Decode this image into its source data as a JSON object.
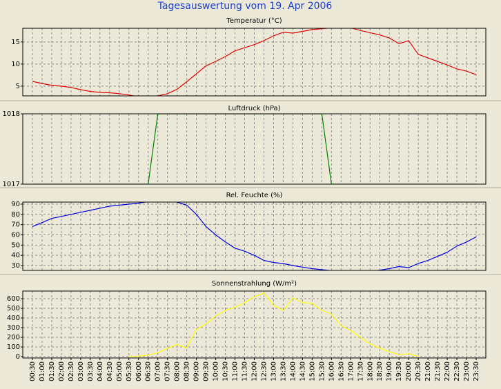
{
  "title": "Tagesauswertung vom 19. Apr 2006",
  "chart_data": [
    {
      "type": "line",
      "title": "Temperatur (°C)",
      "color": "#e00000",
      "grid": true,
      "ylim": [
        2.8,
        18.1
      ],
      "yticks": [
        5,
        10,
        15
      ],
      "values": [
        6.1,
        5.6,
        5.2,
        5.0,
        4.7,
        4.2,
        3.8,
        3.6,
        3.5,
        3.3,
        3.0,
        2.6,
        2.6,
        2.8,
        3.3,
        4.3,
        6.0,
        7.8,
        9.6,
        10.6,
        11.7,
        13.0,
        13.7,
        14.4,
        15.3,
        16.4,
        17.2,
        17.0,
        17.4,
        17.8,
        18.0,
        18.2,
        18.1,
        18.2,
        17.6,
        17.1,
        16.6,
        15.9,
        14.6,
        15.3,
        12.2,
        11.4,
        10.6,
        9.8,
        8.9,
        8.4,
        7.6
      ]
    },
    {
      "type": "line",
      "title": "Luftdruck (hPa)",
      "color": "#008000",
      "grid": true,
      "ylim": [
        1017,
        1018
      ],
      "yticks": [
        1017,
        1018
      ],
      "values": [
        1017,
        1017,
        1017,
        1017,
        1017,
        1017,
        1017,
        1017,
        1017,
        1017,
        1017,
        1017,
        1017,
        1018,
        1018,
        1018,
        1018,
        1018,
        1018,
        1018,
        1018,
        1018,
        1018,
        1018,
        1018,
        1018,
        1018,
        1018,
        1018,
        1018,
        1018,
        1017,
        1017,
        1017,
        1017,
        1017,
        1017,
        1017,
        1017,
        1017,
        1017,
        1017,
        1017,
        1017,
        1017,
        1017,
        1017
      ]
    },
    {
      "type": "line",
      "title": "Rel. Feuchte (%)",
      "color": "#0000e0",
      "grid": true,
      "ylim": [
        25.3,
        92
      ],
      "yticks": [
        30,
        40,
        50,
        60,
        70,
        80,
        90
      ],
      "values": [
        68,
        72,
        76,
        78,
        80,
        82,
        84,
        86,
        88,
        89,
        90,
        91,
        92.5,
        93,
        93,
        92,
        89,
        80,
        68,
        60,
        53,
        47,
        44,
        40,
        35,
        33,
        32,
        30,
        28.5,
        27,
        26,
        25,
        24,
        24,
        24,
        24.5,
        25.5,
        27,
        29,
        28,
        32,
        35,
        39,
        43,
        49,
        53,
        58
      ]
    },
    {
      "type": "line",
      "title": "Sonnenstrahlung (W/m²)",
      "color": "#ffff00",
      "grid": true,
      "ylim": [
        -14,
        679
      ],
      "yticks": [
        0,
        100,
        200,
        300,
        400,
        500,
        600
      ],
      "x": [
        "00:30",
        "01:00",
        "01:30",
        "02:00",
        "02:30",
        "03:00",
        "03:30",
        "04:00",
        "04:30",
        "05:00",
        "05:30",
        "06:00",
        "06:30",
        "07:00",
        "07:30",
        "08:00",
        "08:30",
        "09:00",
        "09:30",
        "10:00",
        "10:30",
        "11:00",
        "11:30",
        "12:00",
        "12:30",
        "13:00",
        "13:30",
        "14:00",
        "14:30",
        "15:00",
        "15:30",
        "16:00",
        "16:30",
        "17:00",
        "17:30",
        "18:00",
        "18:30",
        "19:00",
        "19:30",
        "20:00",
        "20:30",
        "21:00",
        "21:30",
        "22:00",
        "22:30",
        "23:00",
        "23:30"
      ],
      "values": [
        null,
        null,
        null,
        null,
        null,
        null,
        null,
        null,
        null,
        null,
        0,
        5,
        15,
        40,
        85,
        125,
        90,
        280,
        340,
        420,
        480,
        510,
        560,
        620,
        660,
        530,
        480,
        610,
        560,
        550,
        480,
        440,
        320,
        270,
        200,
        130,
        90,
        50,
        20,
        30,
        0,
        null,
        null,
        null,
        null,
        null,
        null
      ]
    }
  ]
}
